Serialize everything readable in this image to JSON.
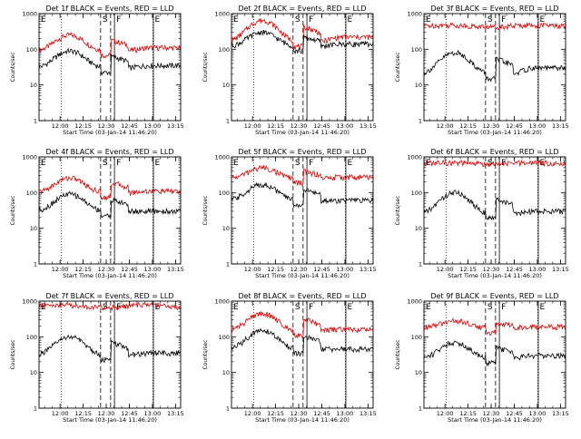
{
  "figure": {
    "title_suffix": " BLACK = Events, RED = LLD",
    "xlabel": "Start Time (03-Jan-14 11:46:20)",
    "ylabel": "Counts/sec",
    "x_ticks": [
      "12:00",
      "12:15",
      "12:30",
      "12:45",
      "13:00",
      "13:15"
    ],
    "y_ticks": [
      "1",
      "10",
      "100",
      "1000"
    ],
    "markers": {
      "E": "E",
      "S": "S",
      "F": "F"
    },
    "colors": {
      "events": "#000000",
      "lld": "#dd0000"
    }
  },
  "chart_data": [
    {
      "type": "line",
      "title": "Det 1f BLACK = Events, RED = LLD",
      "series": [
        {
          "name": "Events",
          "shape": "hump",
          "lo": 30,
          "hi": 90,
          "end": 35
        },
        {
          "name": "LLD",
          "shape": "hump",
          "lo": 90,
          "hi": 250,
          "end": 110
        }
      ]
    },
    {
      "type": "line",
      "title": "Det 2f BLACK = Events, RED = LLD",
      "series": [
        {
          "name": "Events",
          "shape": "hump",
          "lo": 120,
          "hi": 300,
          "end": 140
        },
        {
          "name": "LLD",
          "shape": "hump",
          "lo": 160,
          "hi": 650,
          "end": 220
        }
      ]
    },
    {
      "type": "line",
      "title": "Det 3f BLACK = Events, RED = LLD",
      "series": [
        {
          "name": "Events",
          "shape": "hump",
          "lo": 20,
          "hi": 80,
          "end": 30
        },
        {
          "name": "LLD",
          "shape": "flat",
          "lo": 400,
          "hi": 500,
          "end": 420
        }
      ]
    },
    {
      "type": "line",
      "title": "Det 4f BLACK = Events, RED = LLD",
      "series": [
        {
          "name": "Events",
          "shape": "hump",
          "lo": 30,
          "hi": 90,
          "end": 30
        },
        {
          "name": "LLD",
          "shape": "hump",
          "lo": 100,
          "hi": 260,
          "end": 110
        }
      ]
    },
    {
      "type": "line",
      "title": "Det 5f BLACK = Events, RED = LLD",
      "series": [
        {
          "name": "Events",
          "shape": "hump",
          "lo": 60,
          "hi": 170,
          "end": 60
        },
        {
          "name": "LLD",
          "shape": "hump",
          "lo": 250,
          "hi": 500,
          "end": 270
        }
      ]
    },
    {
      "type": "line",
      "title": "Det 6f BLACK = Events, RED = LLD",
      "series": [
        {
          "name": "Events",
          "shape": "hump",
          "lo": 25,
          "hi": 100,
          "end": 30
        },
        {
          "name": "LLD",
          "shape": "flat",
          "lo": 620,
          "hi": 700,
          "end": 650
        }
      ]
    },
    {
      "type": "line",
      "title": "Det 7f BLACK = Events, RED = LLD",
      "series": [
        {
          "name": "Events",
          "shape": "hump",
          "lo": 30,
          "hi": 100,
          "end": 35
        },
        {
          "name": "LLD",
          "shape": "flat",
          "lo": 600,
          "hi": 850,
          "end": 700
        }
      ]
    },
    {
      "type": "line",
      "title": "Det 8f BLACK = Events, RED = LLD",
      "series": [
        {
          "name": "Events",
          "shape": "hump",
          "lo": 45,
          "hi": 150,
          "end": 45
        },
        {
          "name": "LLD",
          "shape": "hump",
          "lo": 150,
          "hi": 450,
          "end": 160
        }
      ]
    },
    {
      "type": "line",
      "title": "Det 9f BLACK = Events, RED = LLD",
      "series": [
        {
          "name": "Events",
          "shape": "hump",
          "lo": 25,
          "hi": 70,
          "end": 30
        },
        {
          "name": "LLD",
          "shape": "hump",
          "lo": 180,
          "hi": 280,
          "end": 190
        }
      ]
    }
  ]
}
